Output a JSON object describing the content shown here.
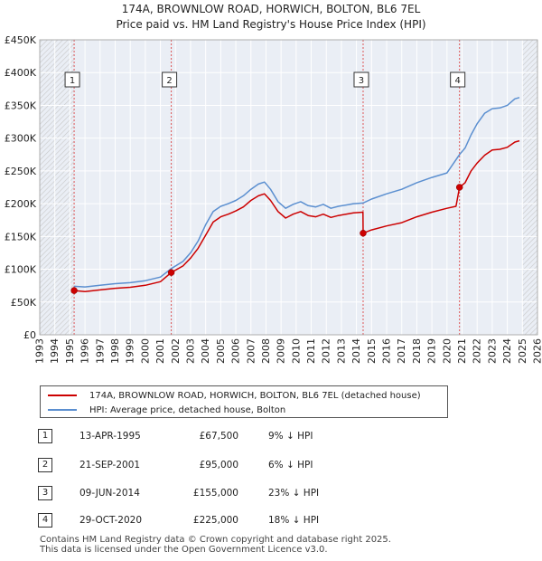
{
  "title_line1": "174A, BROWNLOW ROAD, HORWICH, BOLTON, BL6 7EL",
  "title_line2": "Price paid vs. HM Land Registry's House Price Index (HPI)",
  "chart_data": {
    "type": "line",
    "xlabel": "",
    "ylabel": "",
    "xlim": [
      1993,
      2026
    ],
    "ylim": [
      0,
      450000
    ],
    "x_ticks": [
      1993,
      1994,
      1995,
      1996,
      1997,
      1998,
      1999,
      2000,
      2001,
      2002,
      2003,
      2004,
      2005,
      2006,
      2007,
      2008,
      2009,
      2010,
      2011,
      2012,
      2013,
      2014,
      2015,
      2016,
      2017,
      2018,
      2019,
      2020,
      2021,
      2022,
      2023,
      2024,
      2025,
      2026
    ],
    "y_ticks": [
      {
        "value": 0,
        "label": "£0"
      },
      {
        "value": 50000,
        "label": "£50K"
      },
      {
        "value": 100000,
        "label": "£100K"
      },
      {
        "value": 150000,
        "label": "£150K"
      },
      {
        "value": 200000,
        "label": "£200K"
      },
      {
        "value": 250000,
        "label": "£250K"
      },
      {
        "value": 300000,
        "label": "£300K"
      },
      {
        "value": 350000,
        "label": "£350K"
      },
      {
        "value": 400000,
        "label": "£400K"
      },
      {
        "value": 450000,
        "label": "£450K"
      }
    ],
    "hatched_ranges": [
      [
        1993,
        1995.28
      ],
      [
        2025.0,
        2026
      ]
    ],
    "series": [
      {
        "name": "174A, BROWNLOW ROAD, HORWICH, BOLTON, BL6 7EL (detached house)",
        "color": "#cc0000",
        "points": [
          [
            1995.28,
            67500
          ],
          [
            1996,
            66000
          ],
          [
            1997,
            68500
          ],
          [
            1998,
            71000
          ],
          [
            1999,
            72500
          ],
          [
            2000,
            75500
          ],
          [
            2001,
            81000
          ],
          [
            2001.72,
            95000
          ],
          [
            2002.5,
            105000
          ],
          [
            2003,
            117000
          ],
          [
            2003.5,
            132000
          ],
          [
            2004,
            152000
          ],
          [
            2004.5,
            172000
          ],
          [
            2005,
            180000
          ],
          [
            2005.5,
            184000
          ],
          [
            2006,
            189000
          ],
          [
            2006.5,
            195000
          ],
          [
            2007,
            205000
          ],
          [
            2007.5,
            212000
          ],
          [
            2007.9,
            215000
          ],
          [
            2008.3,
            205000
          ],
          [
            2008.8,
            188000
          ],
          [
            2009.3,
            178000
          ],
          [
            2009.8,
            184000
          ],
          [
            2010.3,
            188000
          ],
          [
            2010.8,
            182000
          ],
          [
            2011.3,
            180000
          ],
          [
            2011.8,
            184000
          ],
          [
            2012.3,
            179000
          ],
          [
            2012.8,
            182000
          ],
          [
            2013.3,
            184000
          ],
          [
            2013.8,
            186000
          ],
          [
            2014.43,
            187000
          ],
          [
            2014.44,
            155000
          ],
          [
            2015,
            160000
          ],
          [
            2016,
            166000
          ],
          [
            2017,
            171000
          ],
          [
            2018,
            180000
          ],
          [
            2019,
            187000
          ],
          [
            2020,
            193000
          ],
          [
            2020.6,
            196000
          ],
          [
            2020.83,
            225000
          ],
          [
            2021.2,
            232000
          ],
          [
            2021.6,
            250000
          ],
          [
            2022,
            262000
          ],
          [
            2022.5,
            274000
          ],
          [
            2023,
            282000
          ],
          [
            2023.5,
            283000
          ],
          [
            2024,
            286000
          ],
          [
            2024.5,
            294000
          ],
          [
            2024.8,
            296000
          ]
        ]
      },
      {
        "name": "HPI: Average price, detached house, Bolton",
        "color": "#5b8fd0",
        "points": [
          [
            1995.28,
            74000
          ],
          [
            1996,
            73000
          ],
          [
            1997,
            75500
          ],
          [
            1998,
            78000
          ],
          [
            1999,
            79500
          ],
          [
            2000,
            82500
          ],
          [
            2001,
            88000
          ],
          [
            2001.72,
            101000
          ],
          [
            2002.5,
            112000
          ],
          [
            2003,
            125000
          ],
          [
            2003.5,
            143000
          ],
          [
            2004,
            168000
          ],
          [
            2004.5,
            188000
          ],
          [
            2005,
            196000
          ],
          [
            2005.5,
            200000
          ],
          [
            2006,
            205000
          ],
          [
            2006.5,
            212000
          ],
          [
            2007,
            222000
          ],
          [
            2007.5,
            230000
          ],
          [
            2007.9,
            233000
          ],
          [
            2008.3,
            222000
          ],
          [
            2008.8,
            203000
          ],
          [
            2009.3,
            193000
          ],
          [
            2009.8,
            199000
          ],
          [
            2010.3,
            203000
          ],
          [
            2010.8,
            197000
          ],
          [
            2011.3,
            195000
          ],
          [
            2011.8,
            199000
          ],
          [
            2012.3,
            193000
          ],
          [
            2012.8,
            196000
          ],
          [
            2013.3,
            198000
          ],
          [
            2013.8,
            200000
          ],
          [
            2014.43,
            201000
          ],
          [
            2015,
            207000
          ],
          [
            2016,
            215000
          ],
          [
            2017,
            222000
          ],
          [
            2018,
            232000
          ],
          [
            2019,
            240000
          ],
          [
            2020,
            247000
          ],
          [
            2020.83,
            275000
          ],
          [
            2021.2,
            285000
          ],
          [
            2021.6,
            305000
          ],
          [
            2022,
            322000
          ],
          [
            2022.5,
            338000
          ],
          [
            2023,
            345000
          ],
          [
            2023.5,
            346000
          ],
          [
            2024,
            350000
          ],
          [
            2024.5,
            360000
          ],
          [
            2024.8,
            362000
          ]
        ]
      }
    ],
    "sales": [
      {
        "num": "1",
        "x": 1995.28,
        "value": 67500
      },
      {
        "num": "2",
        "x": 2001.72,
        "value": 95000
      },
      {
        "num": "3",
        "x": 2014.44,
        "value": 155000
      },
      {
        "num": "4",
        "x": 2020.83,
        "value": 225000
      }
    ]
  },
  "legend": {
    "property_label": "174A, BROWNLOW ROAD, HORWICH, BOLTON, BL6 7EL (detached house)",
    "hpi_label": "HPI: Average price, detached house, Bolton"
  },
  "sales_table": [
    {
      "num": "1",
      "date": "13-APR-1995",
      "price": "£67,500",
      "hpi": "9% ↓ HPI"
    },
    {
      "num": "2",
      "date": "21-SEP-2001",
      "price": "£95,000",
      "hpi": "6% ↓ HPI"
    },
    {
      "num": "3",
      "date": "09-JUN-2014",
      "price": "£155,000",
      "hpi": "23% ↓ HPI"
    },
    {
      "num": "4",
      "date": "29-OCT-2020",
      "price": "£225,000",
      "hpi": "18% ↓ HPI"
    }
  ],
  "footer_line1": "Contains HM Land Registry data © Crown copyright and database right 2025.",
  "footer_line2": "This data is licensed under the Open Government Licence v3.0."
}
